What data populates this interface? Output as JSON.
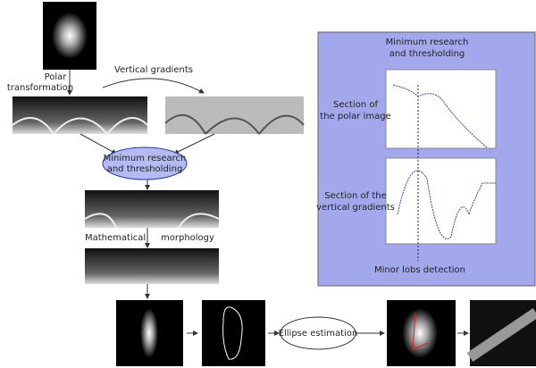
{
  "steps": {
    "polar_transformation": {
      "lines": [
        "Polar",
        "transformation"
      ]
    },
    "vertical_gradients": {
      "label": "Vertical gradients"
    },
    "minimum_research": {
      "lines": [
        "Minimum research",
        "and thresholding"
      ]
    },
    "mathematical_morphology": {
      "lines": [
        "Mathematical",
        "morphology"
      ]
    },
    "ellipse_estimation": {
      "label": "Ellipse estimation"
    }
  },
  "detail_panel": {
    "title": [
      "Minimum research",
      "and thresholding"
    ],
    "plot_1_label": [
      "Section of",
      "the polar image"
    ],
    "plot_2_label": [
      "Section of the",
      "vertical gradients"
    ],
    "footer": "Minor lobs detection"
  }
}
